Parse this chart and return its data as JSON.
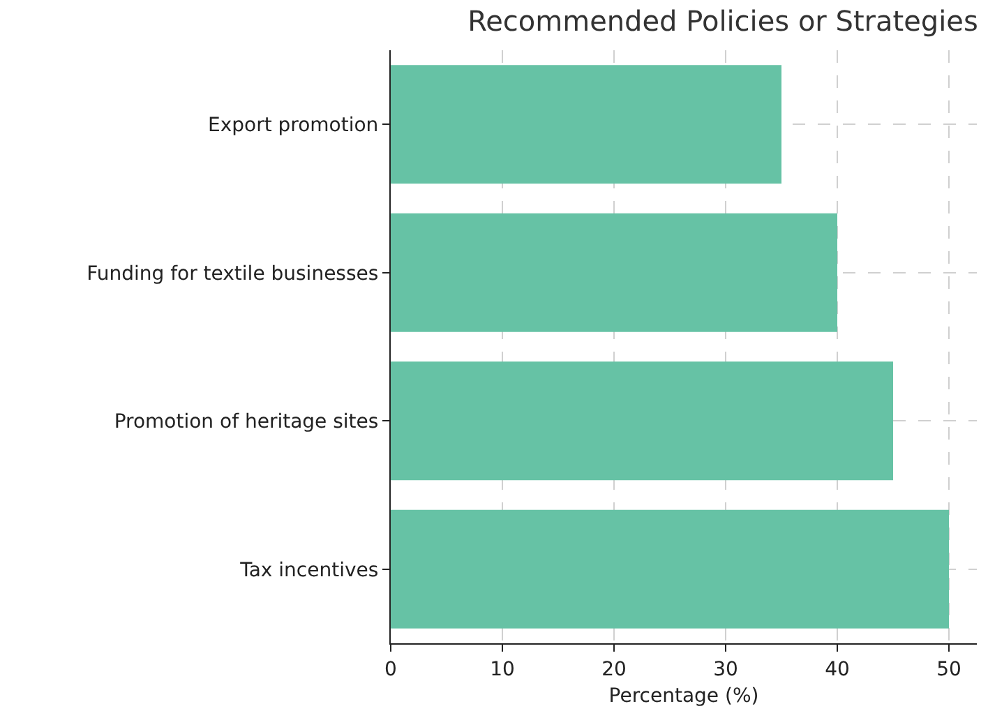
{
  "chart_data": {
    "type": "bar",
    "title": "Recommended Policies or Strategies",
    "xlabel": "Percentage (%)",
    "orientation": "horizontal",
    "categories": [
      "Export promotion",
      "Funding for textile businesses",
      "Promotion of heritage sites",
      "Tax incentives"
    ],
    "values": [
      35,
      40,
      45,
      50
    ],
    "color": "#66c2a5",
    "xlim": [
      0,
      52.5
    ],
    "xticks": [
      0,
      10,
      20,
      30,
      40,
      50
    ],
    "grid": true
  }
}
